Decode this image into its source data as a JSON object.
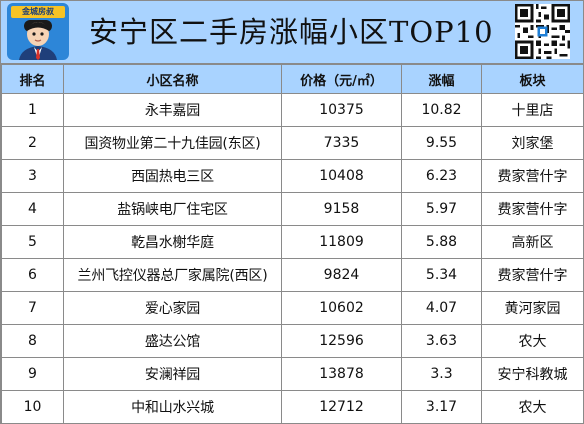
{
  "header": {
    "brand_label": "金城房叔",
    "title": "安宁区二手房涨幅小区TOP10"
  },
  "table": {
    "columns": [
      "排名",
      "小区名称",
      "价格（元/㎡）",
      "涨幅",
      "板块"
    ],
    "rows": [
      [
        "1",
        "永丰嘉园",
        "10375",
        "10.82",
        "十里店"
      ],
      [
        "2",
        "国资物业第二十九佳园(东区)",
        "7335",
        "9.55",
        "刘家堡"
      ],
      [
        "3",
        "西固热电三区",
        "10408",
        "6.23",
        "费家营什字"
      ],
      [
        "4",
        "盐锅峡电厂住宅区",
        "9158",
        "5.97",
        "费家营什字"
      ],
      [
        "5",
        "乾昌水榭华庭",
        "11809",
        "5.88",
        "高新区"
      ],
      [
        "6",
        "兰州飞控仪器总厂家属院(西区)",
        "9824",
        "5.34",
        "费家营什字"
      ],
      [
        "7",
        "爱心家园",
        "10602",
        "4.07",
        "黄河家园"
      ],
      [
        "8",
        "盛达公馆",
        "12596",
        "3.63",
        "农大"
      ],
      [
        "9",
        "安澜祥园",
        "13878",
        "3.3",
        "安宁科教城"
      ],
      [
        "10",
        "中和山水兴城",
        "12712",
        "3.17",
        "农大"
      ]
    ]
  },
  "colors": {
    "header_bg": "#a9d3ff",
    "border": "#8a8a8a",
    "logo_bg": "#2d86d8",
    "logo_label_bg": "#f7c325"
  },
  "icons": [
    "avatar-logo",
    "qr-code"
  ]
}
